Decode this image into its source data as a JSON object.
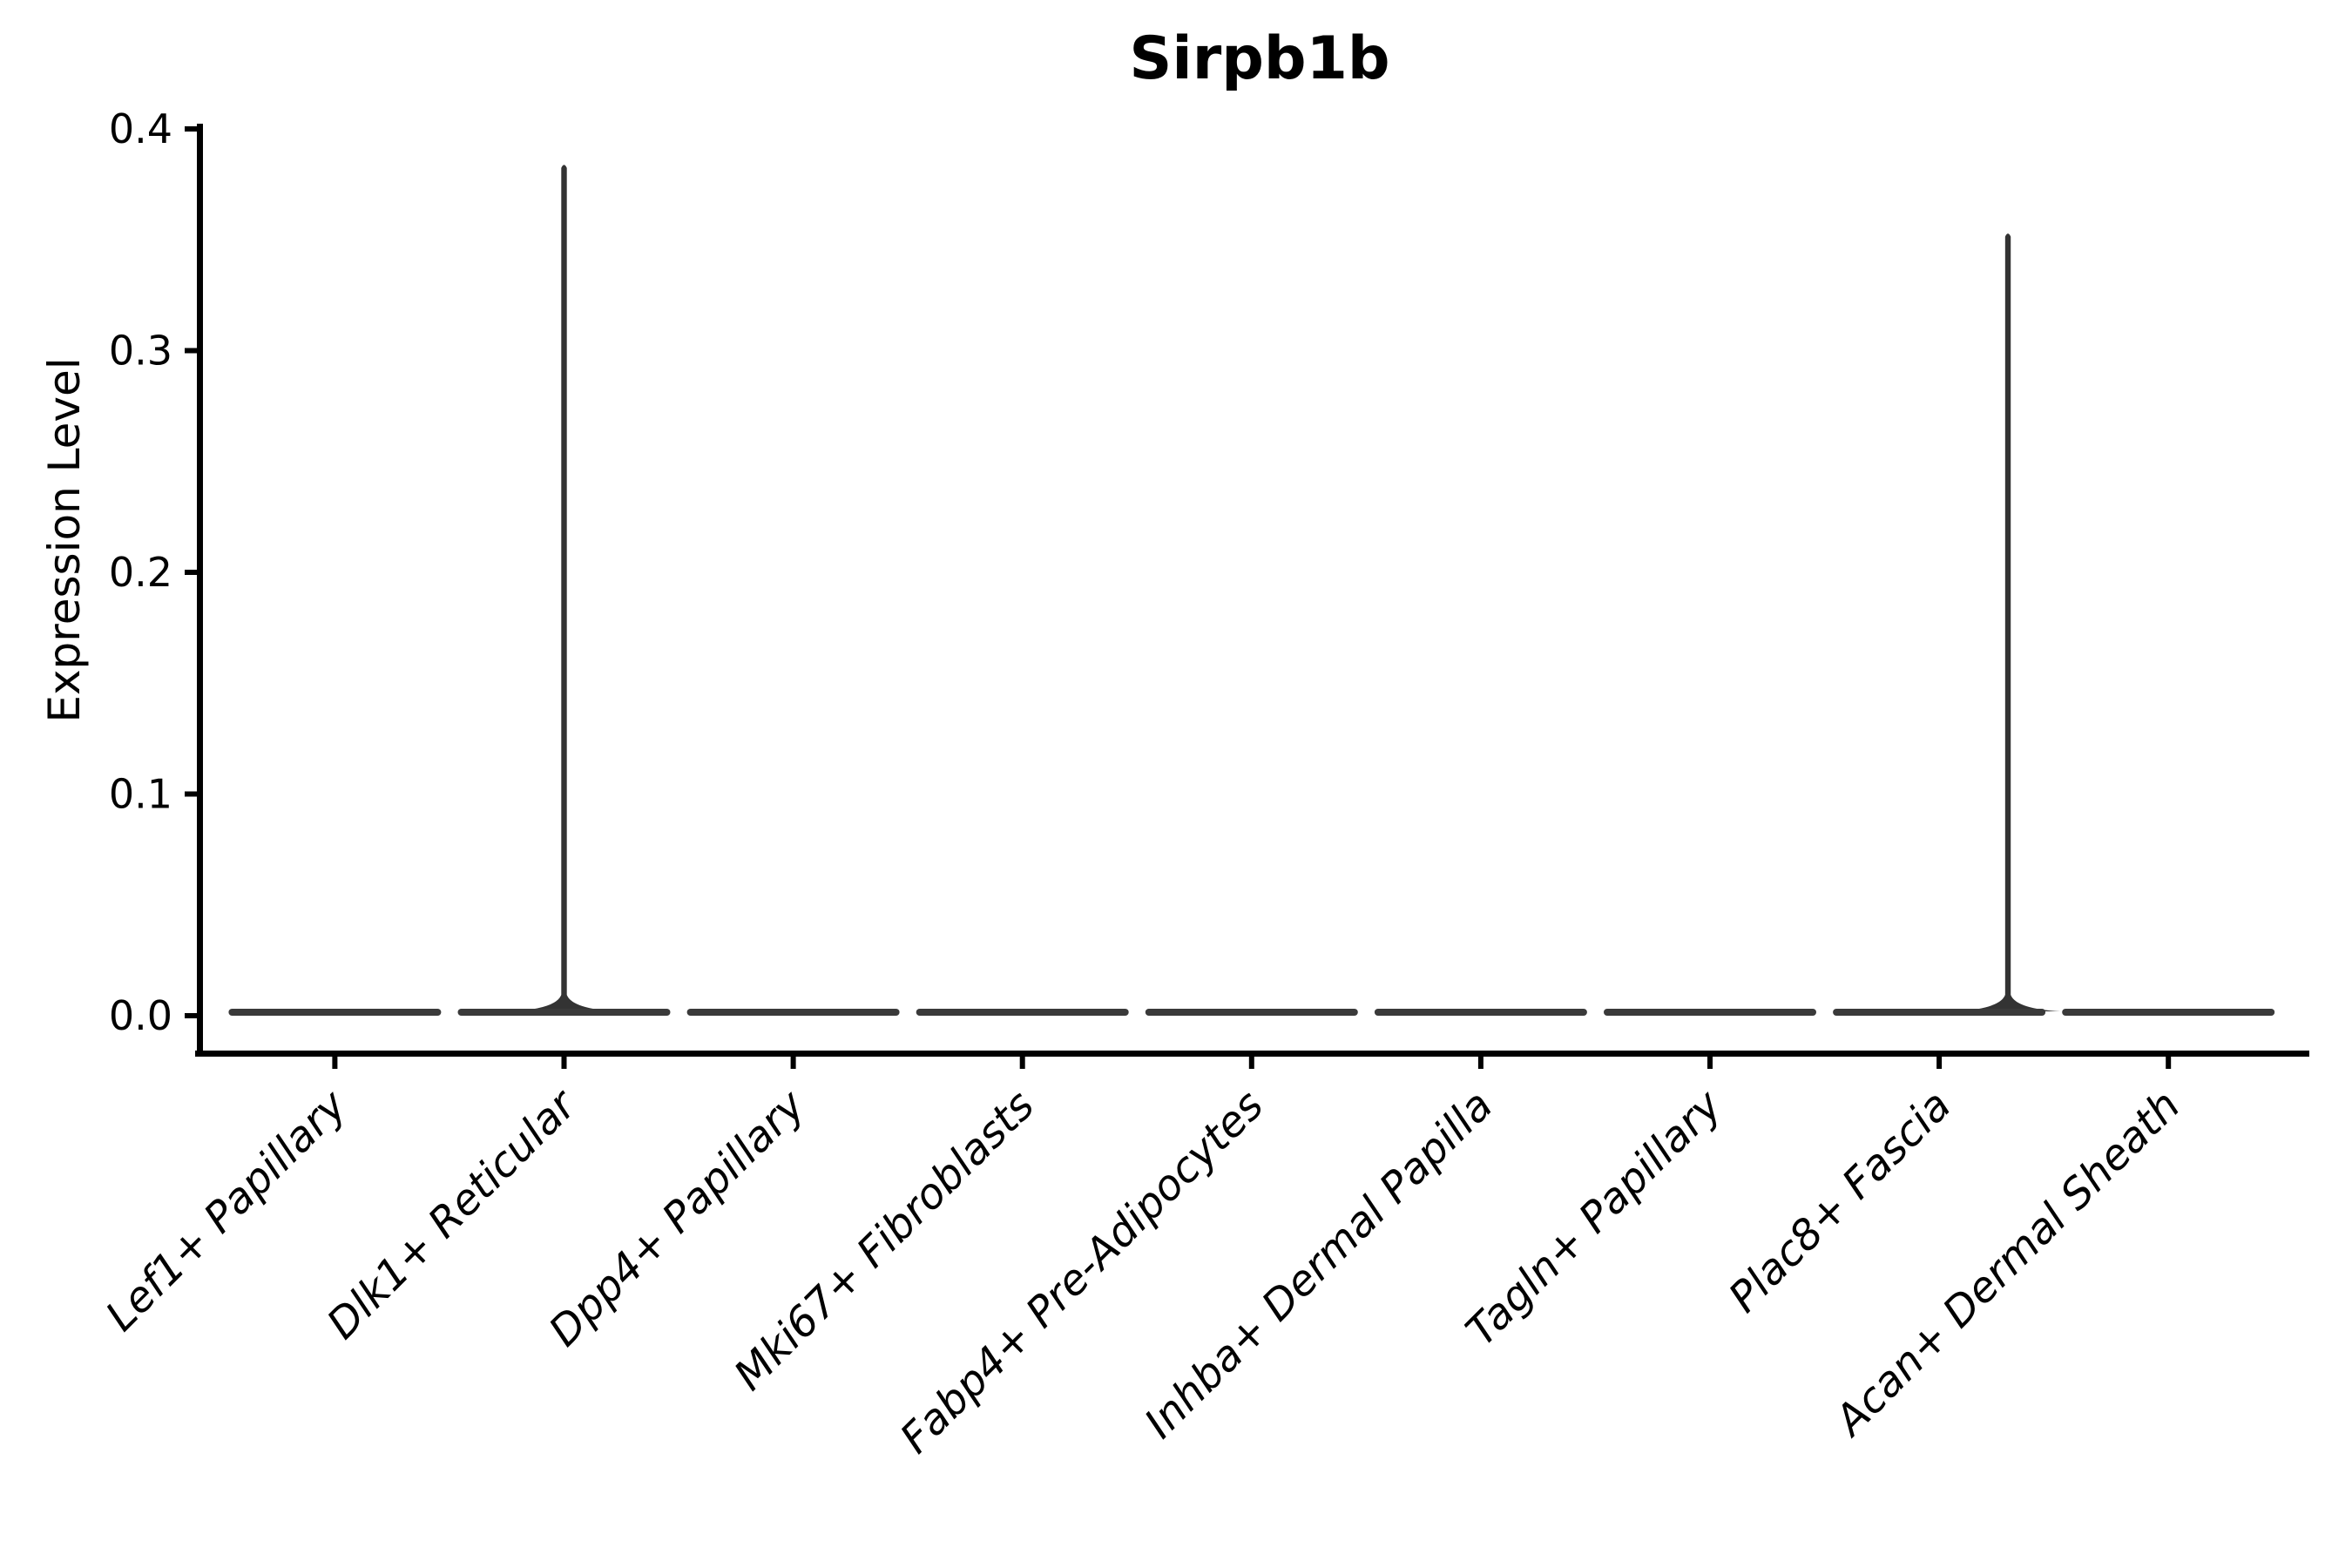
{
  "chart_data": {
    "type": "violin",
    "title": "Sirpb1b",
    "xlabel": "",
    "ylabel": "Expression Level",
    "yticks": [
      "0.0",
      "0.1",
      "0.2",
      "0.3",
      "0.4"
    ],
    "ylim": [
      0.0,
      0.4
    ],
    "grid": false,
    "legend": false,
    "categories": [
      "Lef1+ Papillary",
      "Dlk1+ Reticular",
      "Dpp4+ Papillary",
      "Mki67+ Fibroblasts",
      "Fabp4+ Pre-Adipocytes",
      "Inhba+ Dermal Papilla",
      "Tagln+ Papillary",
      "Plac8+ Fascia",
      "Acan+ Dermal Sheath"
    ],
    "violins": [
      {
        "category": "Lef1+ Papillary",
        "bulk_at": 0.0,
        "max": 0.0
      },
      {
        "category": "Dlk1+ Reticular",
        "bulk_at": 0.0,
        "max": 0.384,
        "spike_x_offset": 0.0
      },
      {
        "category": "Dpp4+ Papillary",
        "bulk_at": 0.0,
        "max": 0.0
      },
      {
        "category": "Mki67+ Fibroblasts",
        "bulk_at": 0.0,
        "max": 0.0
      },
      {
        "category": "Fabp4+ Pre-Adipocytes",
        "bulk_at": 0.0,
        "max": 0.0
      },
      {
        "category": "Inhba+ Dermal Papilla",
        "bulk_at": 0.0,
        "max": 0.0
      },
      {
        "category": "Tagln+ Papillary",
        "bulk_at": 0.0,
        "max": 0.0
      },
      {
        "category": "Plac8+ Fascia",
        "bulk_at": 0.0,
        "max": 0.353,
        "spike_x_offset": 0.3
      },
      {
        "category": "Acan+ Dermal Sheath",
        "bulk_at": 0.0,
        "max": 0.0
      }
    ],
    "colors": {
      "violin_fill": "#3a3a3a",
      "spike": "#333333",
      "axis": "#000000",
      "text": "#000000",
      "background": "#ffffff"
    }
  }
}
